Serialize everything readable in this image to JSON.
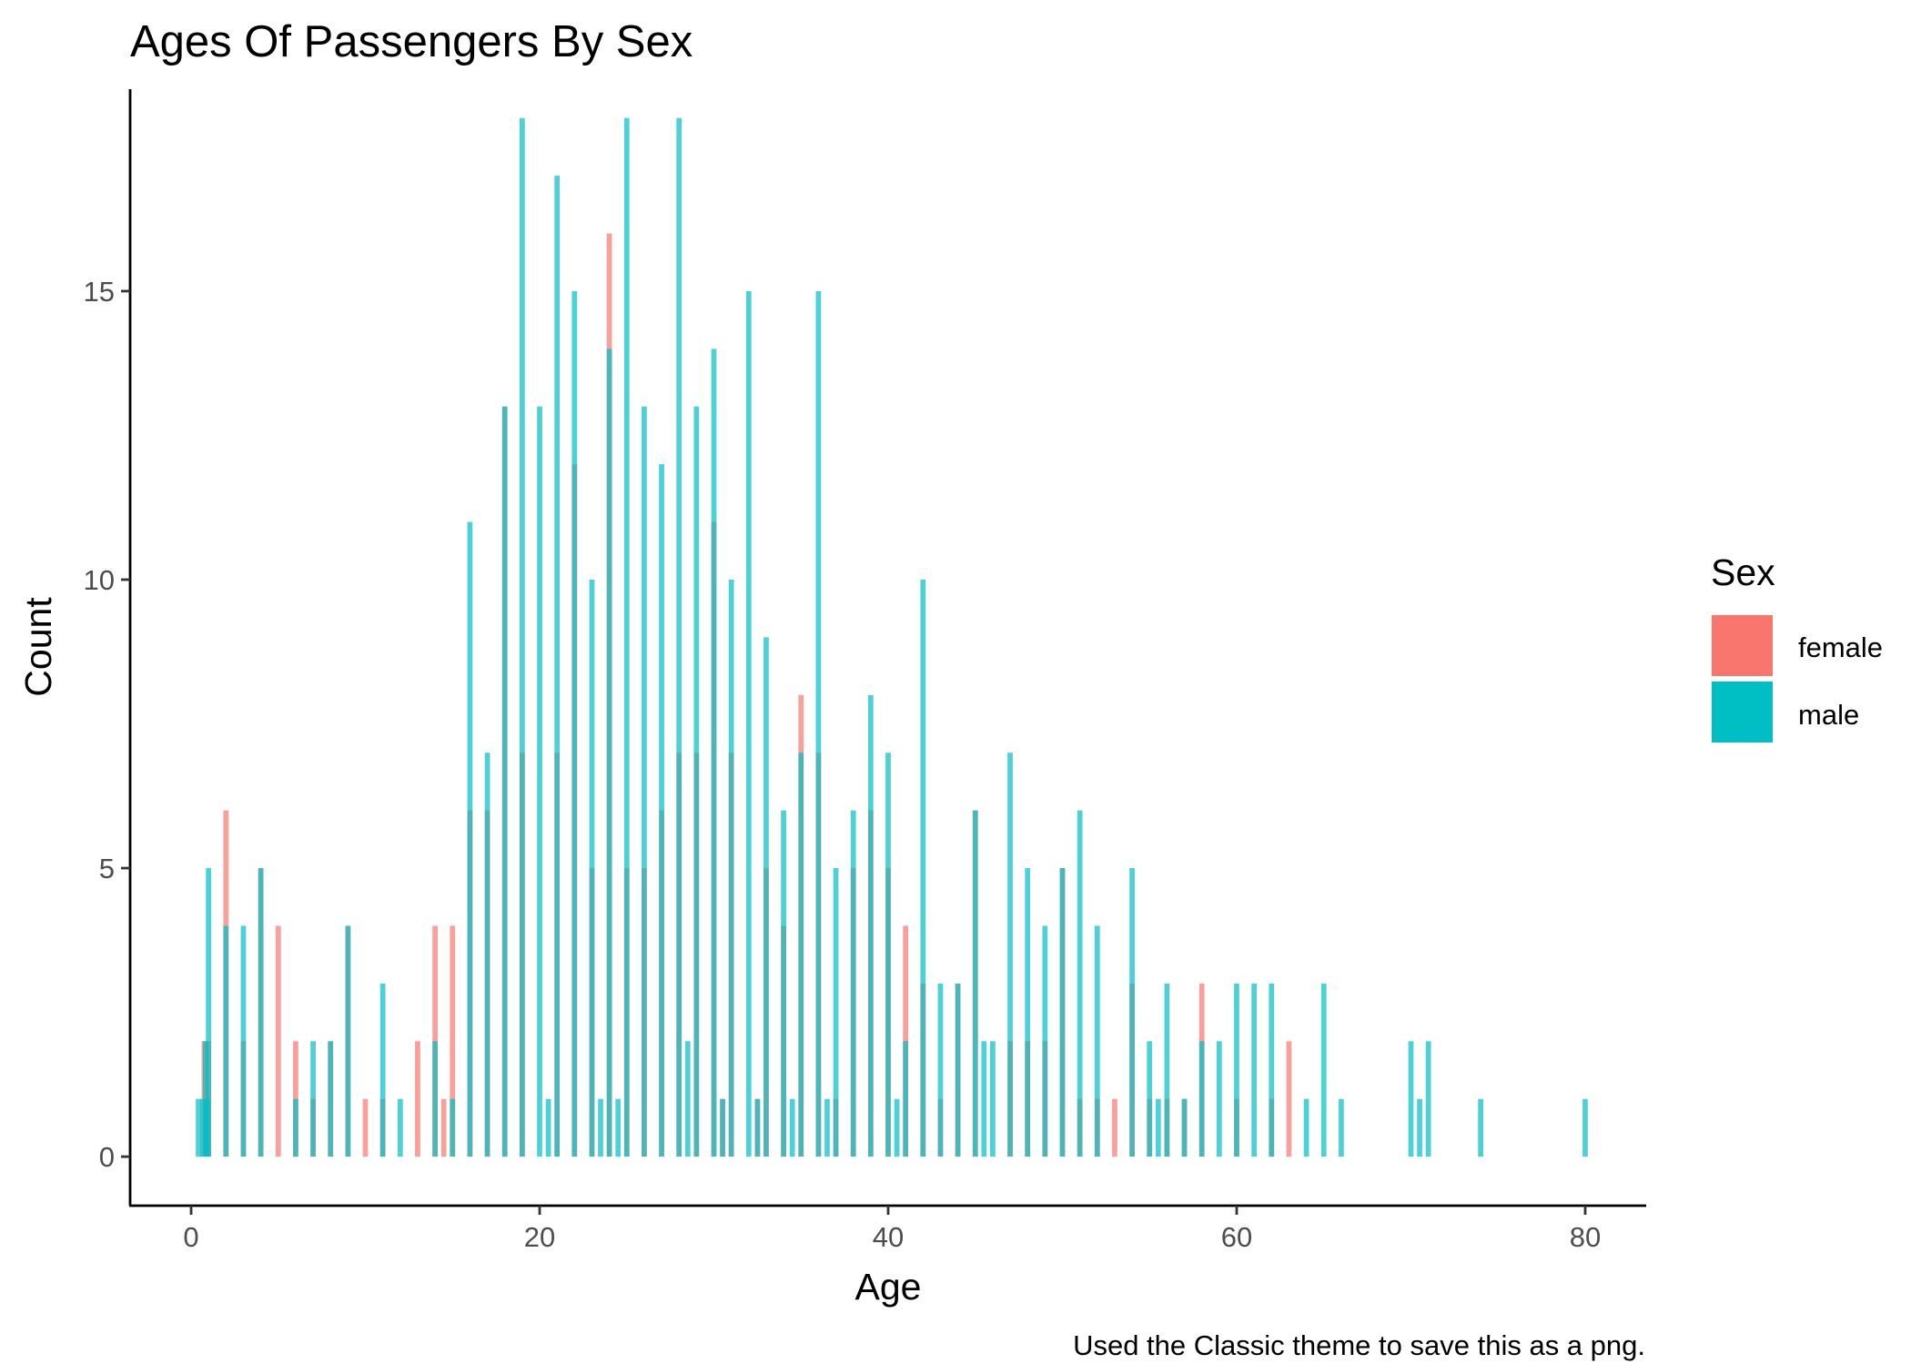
{
  "chart_data": {
    "type": "bar",
    "title": "Ages Of Passengers By Sex",
    "xlabel": "Age",
    "ylabel": "Count",
    "caption": "Used the Classic theme to save this as a png.",
    "legend_title": "Sex",
    "legend_position": "right",
    "grid": false,
    "xlim": [
      -3.5,
      83.5
    ],
    "ylim": [
      -0.85,
      18.5
    ],
    "x_ticks": [
      0,
      20,
      40,
      60,
      80
    ],
    "y_ticks": [
      0,
      5,
      10,
      15
    ],
    "bar_width": 0.3,
    "bar_opacity": 0.7,
    "series": [
      {
        "name": "female",
        "color": "#F8766D",
        "x": [
          0.75,
          1,
          2,
          3,
          4,
          5,
          6,
          7,
          8,
          9,
          10,
          11,
          13,
          14,
          14.5,
          15,
          16,
          17,
          18,
          19,
          21,
          22,
          23,
          24,
          25,
          26,
          27,
          28,
          29,
          30,
          30.5,
          31,
          32.5,
          33,
          34,
          35,
          36,
          37,
          38,
          39,
          40,
          41,
          42,
          43,
          44,
          45,
          47,
          48,
          49,
          50,
          51,
          52,
          53,
          54,
          55,
          56,
          57,
          58,
          60,
          62,
          63
        ],
        "values": [
          2,
          2,
          6,
          2,
          5,
          4,
          2,
          1,
          2,
          4,
          1,
          1,
          2,
          4,
          1,
          4,
          6,
          6,
          13,
          7,
          7,
          12,
          5,
          16,
          5,
          5,
          6,
          7,
          7,
          11,
          1,
          7,
          1,
          5,
          4,
          8,
          7,
          1,
          5,
          6,
          5,
          4,
          3,
          1,
          3,
          6,
          2,
          2,
          2,
          5,
          1,
          1,
          1,
          3,
          1,
          1,
          1,
          3,
          1,
          1,
          2
        ]
      },
      {
        "name": "male",
        "color": "#00BFC4",
        "x": [
          0.42,
          0.67,
          0.83,
          0.92,
          1,
          2,
          3,
          4,
          6,
          7,
          8,
          9,
          11,
          12,
          14,
          15,
          16,
          17,
          18,
          19,
          20,
          20.5,
          21,
          22,
          23,
          23.5,
          24,
          24.5,
          25,
          26,
          27,
          28,
          28.5,
          29,
          30,
          30.5,
          31,
          32,
          32.5,
          33,
          34,
          34.5,
          35,
          36,
          36.5,
          37,
          38,
          39,
          40,
          40.5,
          41,
          42,
          43,
          44,
          45,
          45.5,
          46,
          47,
          48,
          49,
          50,
          51,
          52,
          54,
          55,
          55.5,
          56,
          57,
          58,
          59,
          60,
          61,
          62,
          64,
          65,
          66,
          70,
          70.5,
          71,
          74,
          80
        ],
        "values": [
          1,
          1,
          2,
          1,
          5,
          4,
          4,
          5,
          1,
          2,
          2,
          4,
          3,
          1,
          2,
          1,
          11,
          7,
          13,
          18,
          13,
          1,
          17,
          15,
          10,
          1,
          14,
          1,
          18,
          13,
          12,
          18,
          2,
          13,
          14,
          1,
          10,
          15,
          1,
          9,
          6,
          1,
          7,
          15,
          1,
          5,
          6,
          8,
          7,
          1,
          2,
          10,
          3,
          3,
          6,
          2,
          2,
          7,
          5,
          4,
          5,
          6,
          4,
          5,
          2,
          1,
          3,
          1,
          2,
          2,
          3,
          3,
          3,
          1,
          3,
          1,
          2,
          1,
          2,
          1,
          1
        ]
      }
    ]
  }
}
